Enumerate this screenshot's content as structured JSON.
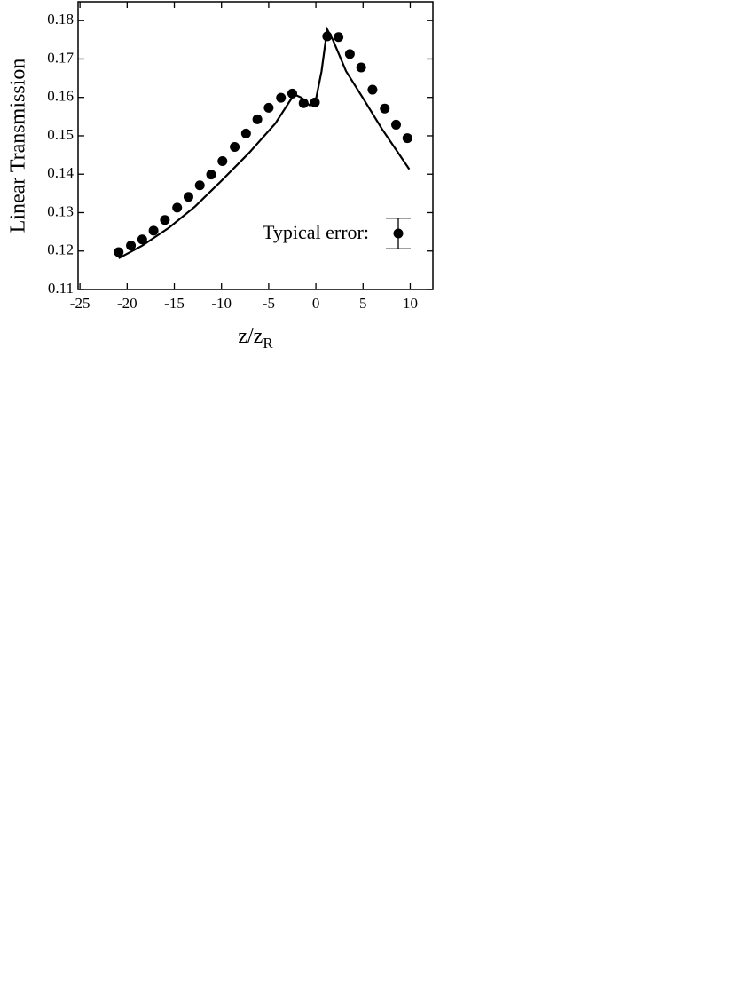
{
  "chart_data": {
    "type": "scatter",
    "xlabel": {
      "main": "z/z",
      "sub": "R"
    },
    "ylabel": "Linear Transmission",
    "xlim": [
      -25.2,
      12.4
    ],
    "ylim": [
      0.11,
      0.1849
    ],
    "xticks": [
      -25,
      -20,
      -15,
      -10,
      -5,
      0,
      5,
      10
    ],
    "yticks": [
      0.11,
      0.12,
      0.13,
      0.14,
      0.15,
      0.16,
      0.17,
      0.18
    ],
    "series": [
      {
        "type": "scatter",
        "color": "#000000",
        "x": [
          -20.9,
          -19.6,
          -18.4,
          -17.2,
          -16.0,
          -14.7,
          -13.5,
          -12.3,
          -11.1,
          -9.9,
          -8.6,
          -7.4,
          -6.2,
          -5.0,
          -3.7,
          -2.5,
          -1.3,
          -0.1,
          1.2,
          2.4,
          3.6,
          4.8,
          6.0,
          7.3,
          8.5,
          9.7
        ],
        "values": [
          0.1197,
          0.1214,
          0.123,
          0.1253,
          0.1281,
          0.1313,
          0.1341,
          0.1371,
          0.1399,
          0.1434,
          0.1471,
          0.1506,
          0.1543,
          0.1573,
          0.1599,
          0.161,
          0.1585,
          0.1587,
          0.1759,
          0.1757,
          0.1713,
          0.1678,
          0.162,
          0.1571,
          0.1529,
          0.1494
        ]
      },
      {
        "type": "line",
        "color": "#000000",
        "x": [
          -20.9,
          -18.4,
          -15.6,
          -12.8,
          -10.0,
          -7.1,
          -4.3,
          -2.3,
          -1.5,
          -0.7,
          -0.3,
          0.0,
          0.6,
          1.2,
          1.8,
          3.2,
          5.1,
          7.0,
          9.9
        ],
        "values": [
          0.1181,
          0.1214,
          0.126,
          0.1316,
          0.1383,
          0.1455,
          0.1532,
          0.1608,
          0.1599,
          0.158,
          0.158,
          0.1594,
          0.1668,
          0.1777,
          0.175,
          0.1668,
          0.1594,
          0.1518,
          0.1413
        ]
      }
    ],
    "typical_error": {
      "label": "Typical error:",
      "value": 0.004
    }
  }
}
